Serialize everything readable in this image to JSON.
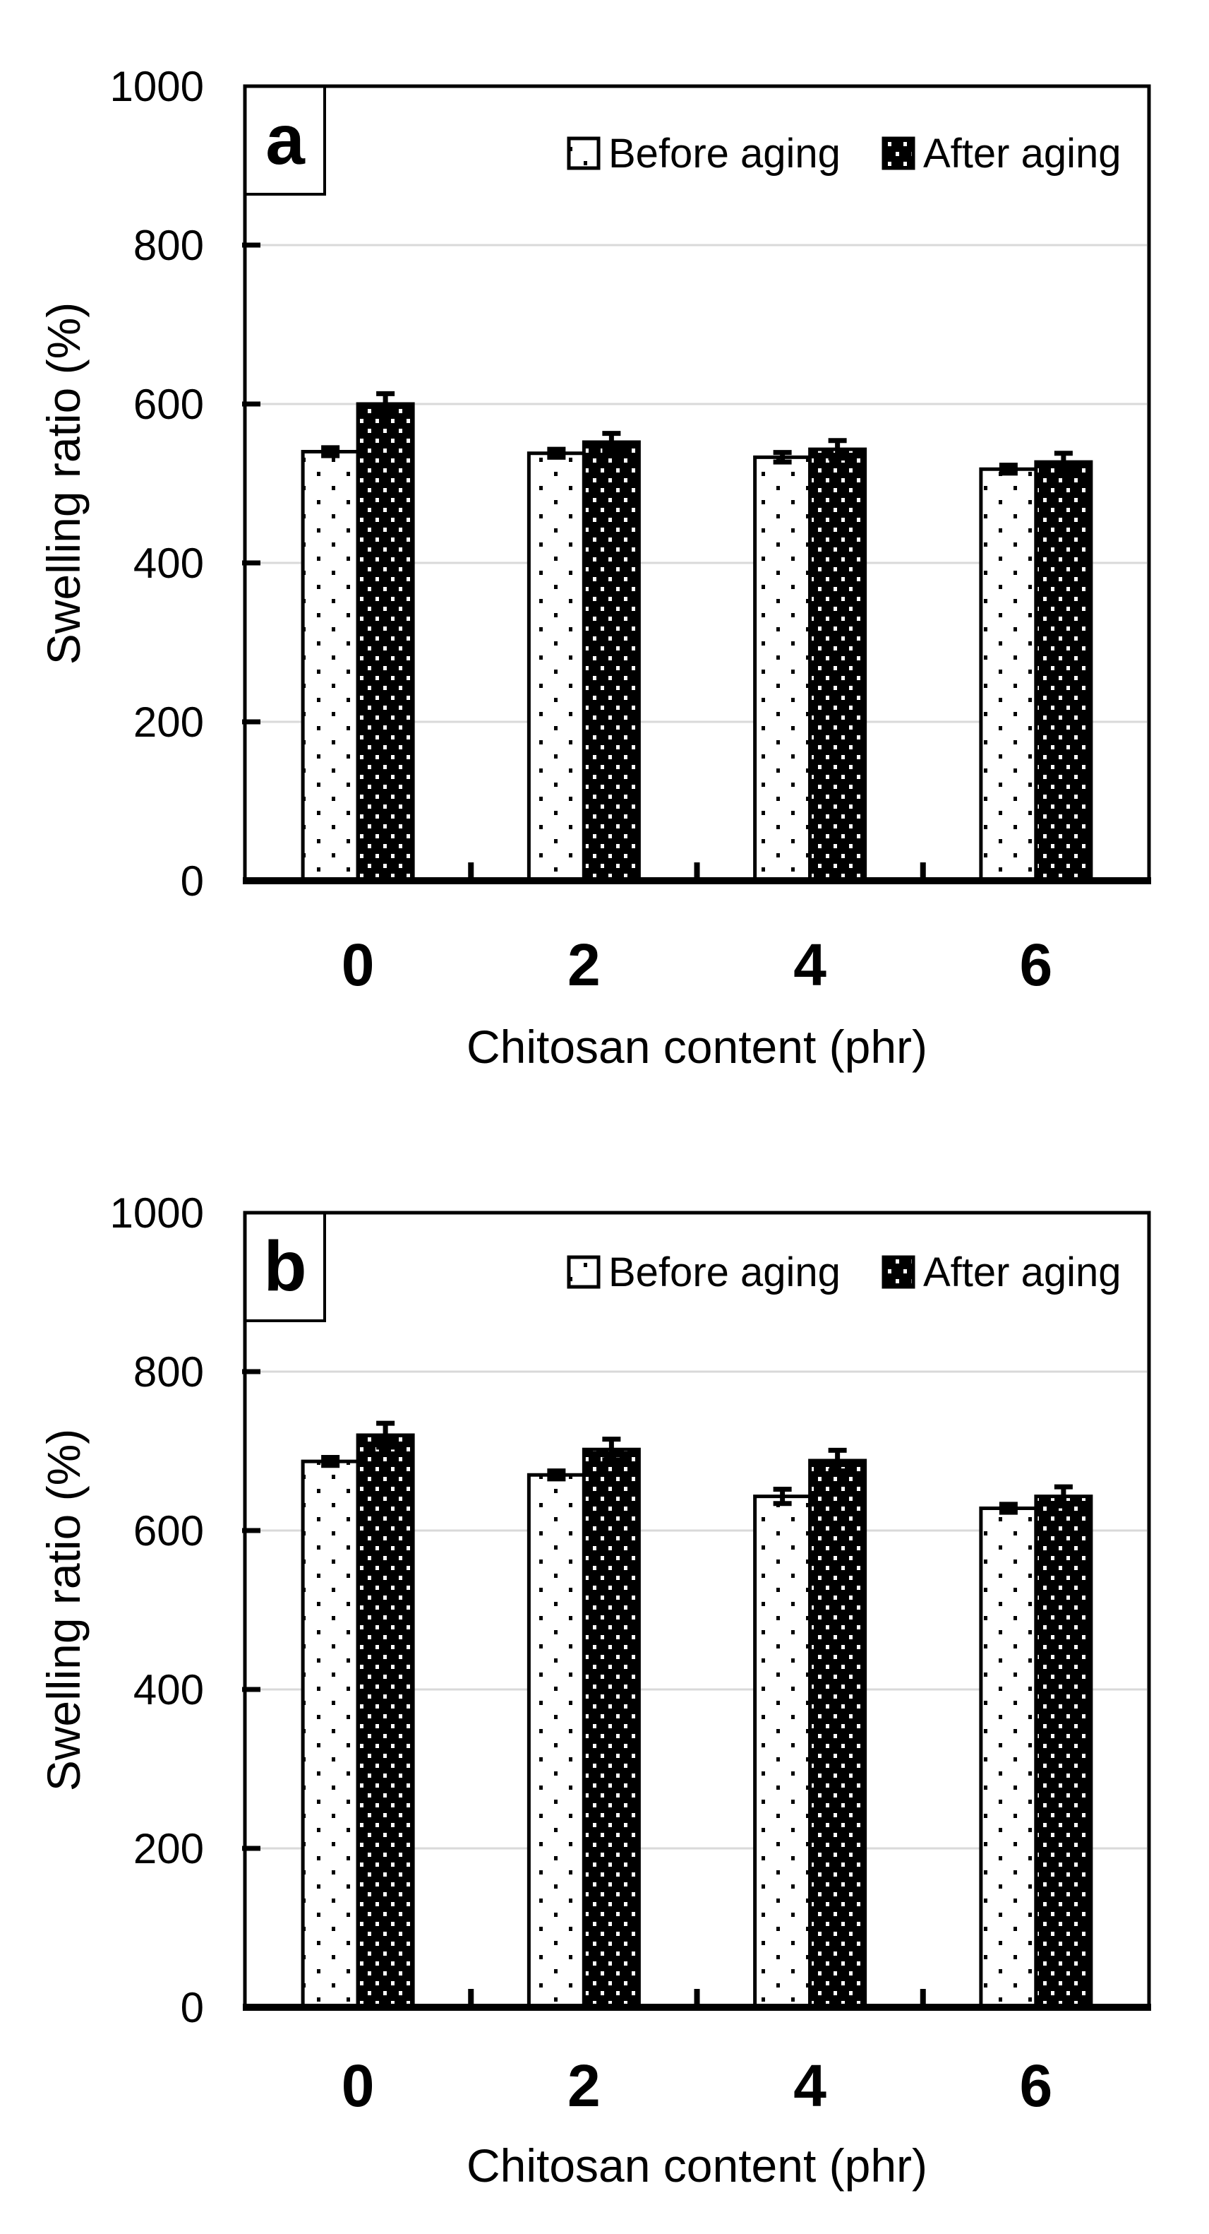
{
  "figure": {
    "background": "#ffffff",
    "grid_color": "#d9d9d9",
    "axis_color": "#000000",
    "bar_fill_before": "#ffffff",
    "bar_fill_after": "#000000"
  },
  "chart_data": [
    {
      "type": "bar",
      "panel_label": "a",
      "xlabel": "Chitosan content (phr)",
      "ylabel": "Swelling ratio (%)",
      "categories": [
        "0",
        "2",
        "4",
        "6"
      ],
      "yticks": [
        0,
        200,
        400,
        600,
        800,
        1000
      ],
      "ylim": [
        0,
        1000
      ],
      "grid": "horizontal",
      "legend_position": "top-inside",
      "series": [
        {
          "name": "Before aging",
          "pattern": "black-dots-on-white",
          "values": [
            540,
            538,
            533,
            518
          ],
          "errors": [
            5,
            5,
            6,
            5
          ]
        },
        {
          "name": "After aging",
          "pattern": "white-dots-on-black",
          "values": [
            600,
            552,
            543,
            527
          ],
          "errors": [
            13,
            11,
            11,
            11
          ]
        }
      ]
    },
    {
      "type": "bar",
      "panel_label": "b",
      "xlabel": "Chitosan content (phr)",
      "ylabel": "Swelling ratio (%)",
      "categories": [
        "0",
        "2",
        "4",
        "6"
      ],
      "yticks": [
        0,
        200,
        400,
        600,
        800,
        1000
      ],
      "ylim": [
        0,
        1000
      ],
      "grid": "horizontal",
      "legend_position": "top-inside",
      "series": [
        {
          "name": "Before aging",
          "pattern": "black-dots-on-white",
          "values": [
            687,
            670,
            643,
            628
          ],
          "errors": [
            5,
            5,
            9,
            5
          ]
        },
        {
          "name": "After aging",
          "pattern": "white-dots-on-black",
          "values": [
            720,
            702,
            688,
            643
          ],
          "errors": [
            15,
            13,
            13,
            12
          ]
        }
      ]
    }
  ]
}
